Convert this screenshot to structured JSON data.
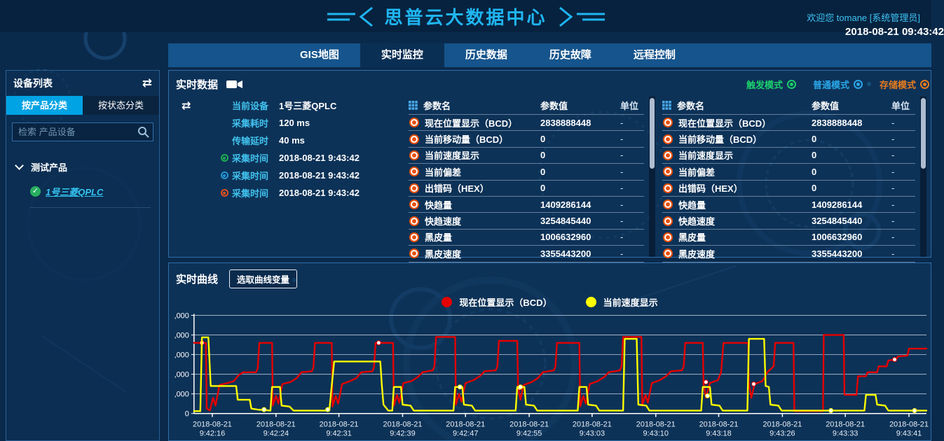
{
  "header": {
    "title": "思普云大数据中心",
    "welcome": "欢迎您  tomane [系统管理员]",
    "datetime": "2018-08-21 09:43:42"
  },
  "nav": {
    "items": [
      {
        "label": "GIS地图",
        "active": false
      },
      {
        "label": "实时监控",
        "active": true
      },
      {
        "label": "历史数据",
        "active": false
      },
      {
        "label": "历史故障",
        "active": false
      },
      {
        "label": "远程控制",
        "active": false
      }
    ]
  },
  "icons": {
    "swap": "⇄",
    "check": "✓"
  },
  "sidebar": {
    "title": "设备列表",
    "tabs": [
      {
        "label": "按产品分类",
        "active": true
      },
      {
        "label": "按状态分类",
        "active": false
      }
    ],
    "search_placeholder": "检索 产品设备",
    "tree": {
      "group": "测试产品",
      "devices": [
        {
          "label": "1号三菱QPLC",
          "status": "online"
        }
      ]
    }
  },
  "realtime_panel": {
    "title": "实时数据",
    "modes": [
      {
        "key": "trigger",
        "label": "触发模式",
        "color": "#1dcf6c"
      },
      {
        "key": "normal",
        "label": "普通模式",
        "color": "#2aa7e8"
      },
      {
        "key": "storage",
        "label": "存储模式",
        "color": "#e87c1e"
      }
    ],
    "info": {
      "rows": [
        {
          "label": "当前设备",
          "value": "1号三菱QPLC"
        },
        {
          "label": "采集耗时",
          "value": "120 ms"
        },
        {
          "label": "传输延时",
          "value": "40 ms"
        },
        {
          "label": "采集时间",
          "value": "2018-08-21 9:43:42",
          "icon_color": "#1fae53"
        },
        {
          "label": "采集时间",
          "value": "2018-08-21 9:43:42",
          "icon_color": "#2496d8"
        },
        {
          "label": "采集时间",
          "value": "2018-08-21 9:43:42",
          "icon_color": "#e0501e"
        }
      ]
    },
    "table": {
      "headers": [
        "参数名",
        "参数值",
        "单位"
      ],
      "rows": [
        [
          "现在位置显示（BCD）",
          "2838888448",
          "-"
        ],
        [
          "当前移动量（BCD）",
          "0",
          "-"
        ],
        [
          "当前速度显示",
          "0",
          "-"
        ],
        [
          "当前偏差",
          "0",
          "-"
        ],
        [
          "出错码（HEX）",
          "0",
          "-"
        ],
        [
          "快趋量",
          "1409286144",
          "-"
        ],
        [
          "快趋速度",
          "3254845440",
          "-"
        ],
        [
          "黑皮量",
          "1006632960",
          "-"
        ],
        [
          "黑皮速度",
          "3355443200",
          "-"
        ]
      ]
    }
  },
  "curve_panel": {
    "title": "实时曲线",
    "select_button": "选取曲线变量"
  },
  "chart_data": {
    "type": "line",
    "title": "实时曲线",
    "x_range": [
      0,
      92
    ],
    "y_range": [
      0,
      5000
    ],
    "y_ticks": [
      0,
      1000,
      2000,
      3000,
      4000,
      5000
    ],
    "y_tick_labels": [
      "0",
      ",000",
      ",000",
      ",000",
      ",000",
      ",000"
    ],
    "x_tick_date": "2018-08-21",
    "x_ticks": [
      {
        "s": 2.3,
        "time": "9:42:16"
      },
      {
        "s": 10.3,
        "time": "9:42:24"
      },
      {
        "s": 18.2,
        "time": "9:42:31"
      },
      {
        "s": 26.2,
        "time": "9:42:39"
      },
      {
        "s": 34.1,
        "time": "9:42:47"
      },
      {
        "s": 42.1,
        "time": "9:42:55"
      },
      {
        "s": 50.0,
        "time": "9:43:03"
      },
      {
        "s": 58.0,
        "time": "9:43:10"
      },
      {
        "s": 65.9,
        "time": "9:43:18"
      },
      {
        "s": 73.9,
        "time": "9:43:26"
      },
      {
        "s": 81.8,
        "time": "9:43:33"
      },
      {
        "s": 89.8,
        "time": "9:43:41"
      }
    ],
    "grid": true,
    "legend_position": "top-center",
    "series": [
      {
        "name": "现在位置显示（BCD）",
        "color": "#e60000",
        "points": [
          [
            0,
            3600
          ],
          [
            1.5,
            3600
          ],
          [
            1.6,
            250
          ],
          [
            2.0,
            150
          ],
          [
            2.4,
            800
          ],
          [
            2.7,
            400
          ],
          [
            3.2,
            1450
          ],
          [
            4.2,
            1550
          ],
          [
            5.0,
            1650
          ],
          [
            5.6,
            1950
          ],
          [
            6.2,
            2100
          ],
          [
            7.8,
            2100
          ],
          [
            8.0,
            2300
          ],
          [
            8.2,
            3600
          ],
          [
            9.8,
            3600
          ],
          [
            9.9,
            400
          ],
          [
            10.3,
            900
          ],
          [
            10.6,
            500
          ],
          [
            11.1,
            1500
          ],
          [
            12.1,
            1600
          ],
          [
            12.9,
            1800
          ],
          [
            13.5,
            2100
          ],
          [
            14.8,
            2150
          ],
          [
            15.0,
            2350
          ],
          [
            15.2,
            3600
          ],
          [
            17.3,
            3600
          ],
          [
            17.4,
            350
          ],
          [
            17.8,
            900
          ],
          [
            18.1,
            500
          ],
          [
            18.6,
            1500
          ],
          [
            19.6,
            1650
          ],
          [
            20.4,
            1800
          ],
          [
            21.0,
            2100
          ],
          [
            22.4,
            2150
          ],
          [
            22.6,
            2350
          ],
          [
            22.8,
            3600
          ],
          [
            25.0,
            3600
          ],
          [
            25.1,
            400
          ],
          [
            25.5,
            950
          ],
          [
            25.8,
            550
          ],
          [
            26.3,
            1550
          ],
          [
            27.3,
            1650
          ],
          [
            28.1,
            1850
          ],
          [
            28.7,
            2100
          ],
          [
            30.0,
            2200
          ],
          [
            30.2,
            2400
          ],
          [
            30.4,
            3900
          ],
          [
            32.8,
            3900
          ],
          [
            32.9,
            450
          ],
          [
            33.3,
            1000
          ],
          [
            33.6,
            600
          ],
          [
            34.1,
            1550
          ],
          [
            35.1,
            1700
          ],
          [
            35.9,
            1900
          ],
          [
            36.5,
            2150
          ],
          [
            37.9,
            2200
          ],
          [
            38.1,
            2400
          ],
          [
            38.3,
            3700
          ],
          [
            40.6,
            3700
          ],
          [
            40.7,
            1300
          ],
          [
            41.0,
            700
          ],
          [
            41.4,
            1450
          ],
          [
            42.4,
            1600
          ],
          [
            43.2,
            1800
          ],
          [
            43.8,
            2100
          ],
          [
            45.2,
            2200
          ],
          [
            45.4,
            2400
          ],
          [
            45.6,
            3600
          ],
          [
            48.4,
            3600
          ],
          [
            48.5,
            350
          ],
          [
            48.9,
            900
          ],
          [
            49.2,
            500
          ],
          [
            49.7,
            1500
          ],
          [
            50.7,
            1650
          ],
          [
            51.5,
            1850
          ],
          [
            52.1,
            2100
          ],
          [
            53.5,
            2200
          ],
          [
            53.7,
            2400
          ],
          [
            53.9,
            3900
          ],
          [
            56.2,
            3900
          ],
          [
            56.3,
            400
          ],
          [
            56.7,
            950
          ],
          [
            57.0,
            550
          ],
          [
            57.5,
            1550
          ],
          [
            58.5,
            1700
          ],
          [
            59.3,
            1900
          ],
          [
            59.9,
            2150
          ],
          [
            61.3,
            2200
          ],
          [
            61.5,
            2400
          ],
          [
            61.7,
            3600
          ],
          [
            63.9,
            3600
          ],
          [
            64.0,
            1500
          ],
          [
            64.3,
            800
          ],
          [
            64.8,
            1550
          ],
          [
            65.8,
            1700
          ],
          [
            66.2,
            2100
          ],
          [
            66.5,
            3600
          ],
          [
            69.6,
            3600
          ],
          [
            69.7,
            1500
          ],
          [
            70.0,
            800
          ],
          [
            70.4,
            1500
          ],
          [
            71.4,
            1650
          ],
          [
            72.0,
            2100
          ],
          [
            72.8,
            2400
          ],
          [
            73.0,
            3600
          ],
          [
            75.3,
            3600
          ],
          [
            75.4,
            120
          ],
          [
            79.0,
            120
          ],
          [
            79.1,
            4000
          ],
          [
            81.6,
            4000
          ],
          [
            81.7,
            950
          ],
          [
            83.2,
            950
          ],
          [
            83.4,
            1900
          ],
          [
            84.4,
            1900
          ],
          [
            84.6,
            2100
          ],
          [
            85.8,
            2100
          ],
          [
            86.0,
            2400
          ],
          [
            87.0,
            2400
          ],
          [
            87.2,
            2700
          ],
          [
            88.2,
            2750
          ],
          [
            88.4,
            2900
          ],
          [
            89.6,
            2950
          ],
          [
            89.8,
            3300
          ],
          [
            92,
            3300
          ]
        ],
        "markers": [
          [
            1.0,
            3600
          ],
          [
            23.2,
            3600
          ],
          [
            40.9,
            1300
          ],
          [
            64.3,
            1600
          ],
          [
            70.3,
            1500
          ],
          [
            88.0,
            2750
          ]
        ]
      },
      {
        "name": "当前速度显示",
        "color": "#ffff00",
        "points": [
          [
            0,
            120
          ],
          [
            0.8,
            120
          ],
          [
            1.0,
            3880
          ],
          [
            1.8,
            3880
          ],
          [
            2.1,
            1400
          ],
          [
            5.3,
            1400
          ],
          [
            5.5,
            700
          ],
          [
            7.0,
            700
          ],
          [
            7.2,
            250
          ],
          [
            8.0,
            200
          ],
          [
            9.6,
            150
          ],
          [
            9.8,
            1350
          ],
          [
            10.8,
            1350
          ],
          [
            11.0,
            400
          ],
          [
            12.0,
            350
          ],
          [
            12.5,
            150
          ],
          [
            17.0,
            150
          ],
          [
            17.3,
            1400
          ],
          [
            17.6,
            2650
          ],
          [
            23.4,
            2650
          ],
          [
            23.6,
            1400
          ],
          [
            23.8,
            450
          ],
          [
            24.4,
            150
          ],
          [
            24.9,
            150
          ],
          [
            25.1,
            1350
          ],
          [
            26.0,
            1350
          ],
          [
            26.2,
            450
          ],
          [
            27.2,
            400
          ],
          [
            27.6,
            150
          ],
          [
            32.6,
            150
          ],
          [
            32.8,
            1350
          ],
          [
            33.7,
            1350
          ],
          [
            33.9,
            450
          ],
          [
            34.9,
            400
          ],
          [
            35.3,
            150
          ],
          [
            40.4,
            150
          ],
          [
            40.6,
            1350
          ],
          [
            41.5,
            1350
          ],
          [
            41.7,
            450
          ],
          [
            42.7,
            400
          ],
          [
            43.1,
            150
          ],
          [
            48.2,
            150
          ],
          [
            48.4,
            1350
          ],
          [
            49.3,
            1350
          ],
          [
            49.5,
            450
          ],
          [
            50.5,
            400
          ],
          [
            50.9,
            150
          ],
          [
            53.9,
            150
          ],
          [
            54.1,
            3800
          ],
          [
            55.6,
            3800
          ],
          [
            55.8,
            450
          ],
          [
            56.8,
            400
          ],
          [
            57.2,
            150
          ],
          [
            63.7,
            150
          ],
          [
            63.9,
            1350
          ],
          [
            64.8,
            1350
          ],
          [
            65.0,
            450
          ],
          [
            66.0,
            400
          ],
          [
            66.4,
            150
          ],
          [
            69.5,
            150
          ],
          [
            69.7,
            3800
          ],
          [
            71.6,
            3800
          ],
          [
            71.8,
            1400
          ],
          [
            72.2,
            1350
          ],
          [
            72.4,
            450
          ],
          [
            73.4,
            400
          ],
          [
            73.8,
            150
          ],
          [
            84.2,
            150
          ],
          [
            84.4,
            950
          ],
          [
            85.6,
            950
          ],
          [
            85.8,
            450
          ],
          [
            86.8,
            400
          ],
          [
            87.2,
            150
          ],
          [
            92,
            150
          ]
        ],
        "markers": [
          [
            8.8,
            200
          ],
          [
            16.8,
            200
          ],
          [
            33.4,
            1350
          ],
          [
            41.0,
            1350
          ],
          [
            64.5,
            900
          ],
          [
            80.0,
            150
          ],
          [
            90.5,
            150
          ]
        ]
      }
    ]
  }
}
